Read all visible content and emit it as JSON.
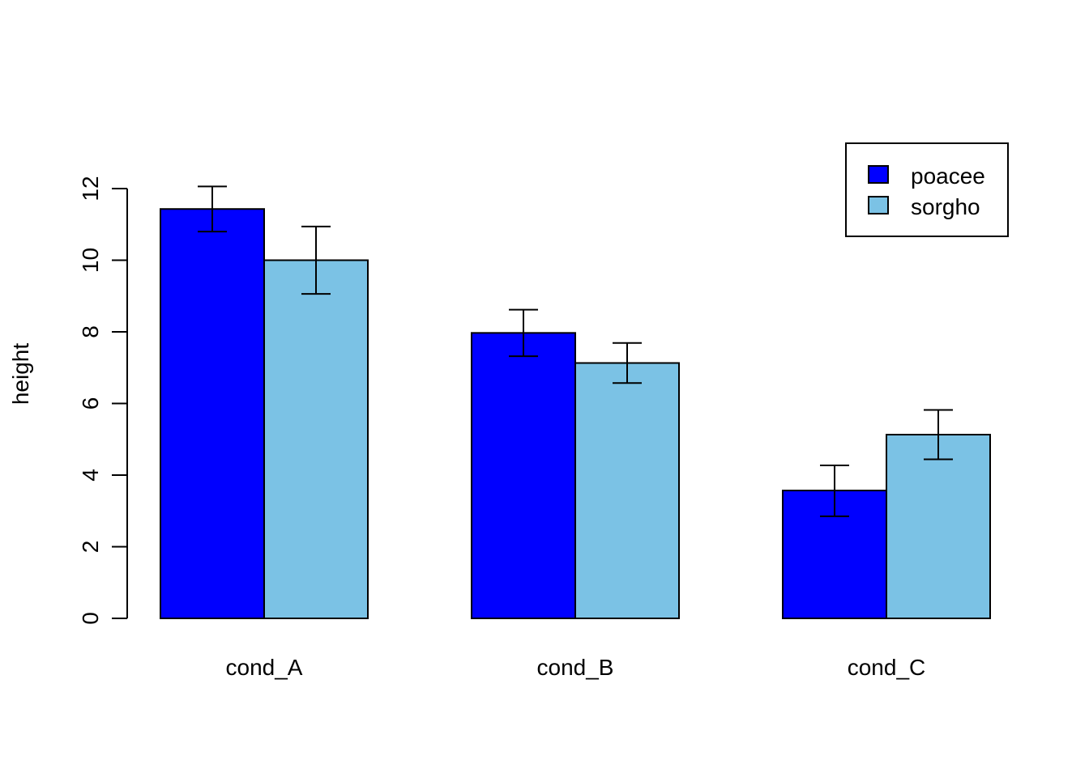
{
  "chart_data": {
    "type": "bar",
    "title": "",
    "xlabel": "",
    "ylabel": "height",
    "ylim": [
      0,
      12
    ],
    "yticks": [
      0,
      2,
      4,
      6,
      8,
      10,
      12
    ],
    "categories": [
      "cond_A",
      "cond_B",
      "cond_C"
    ],
    "series": [
      {
        "name": "poacee",
        "color": "#0000ff",
        "values": [
          11.43,
          7.97,
          3.57
        ],
        "err_low": [
          10.8,
          7.32,
          2.85
        ],
        "err_high": [
          12.06,
          8.62,
          4.27
        ]
      },
      {
        "name": "sorgho",
        "color": "#7bc2e5",
        "values": [
          10.0,
          7.13,
          5.13
        ],
        "err_low": [
          9.06,
          6.57,
          4.44
        ],
        "err_high": [
          10.94,
          7.69,
          5.82
        ]
      }
    ],
    "legend_position": "top-right",
    "grid": false
  }
}
